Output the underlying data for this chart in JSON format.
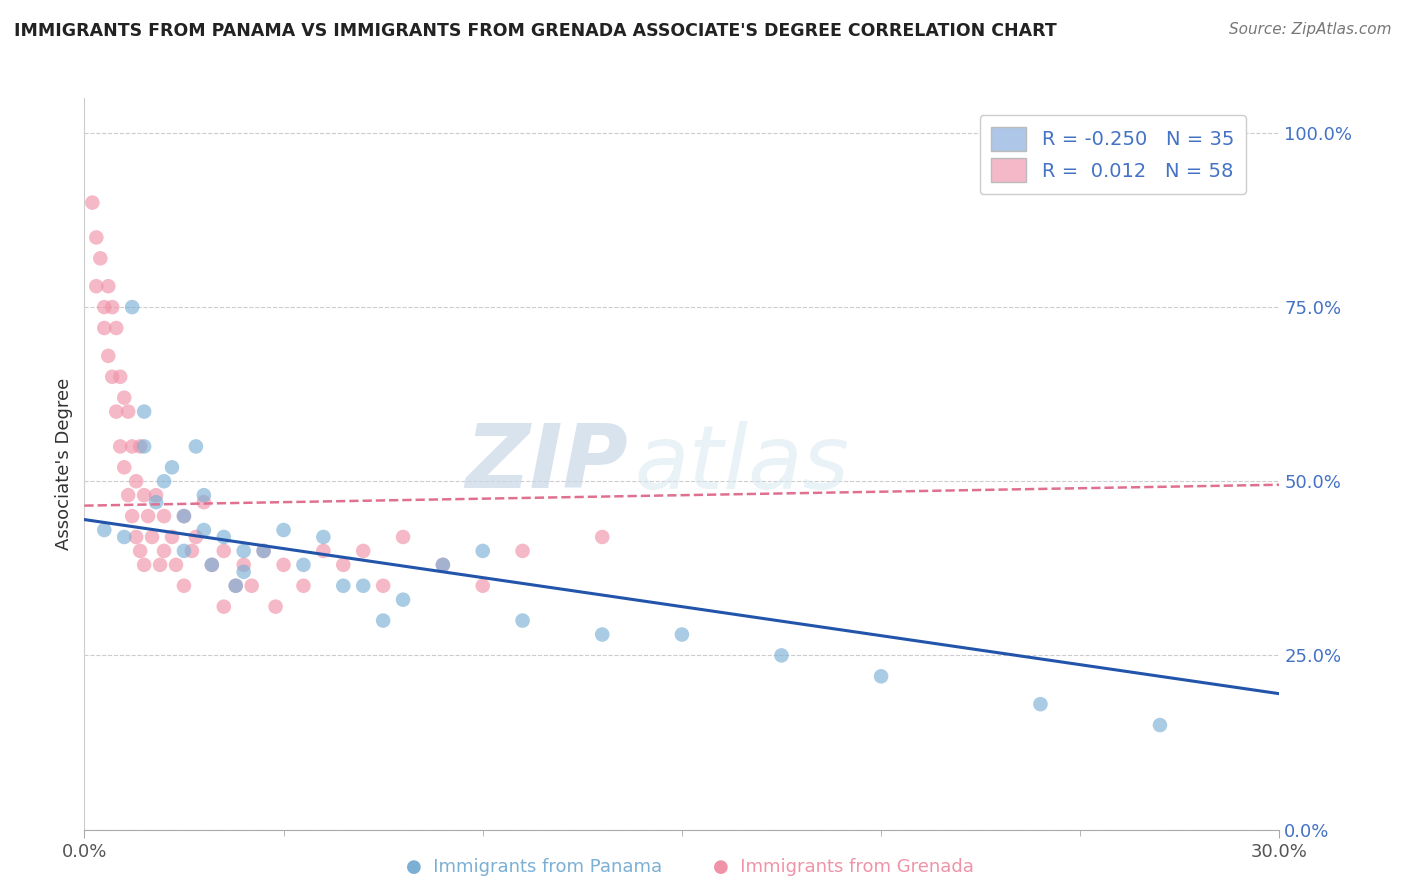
{
  "title": "IMMIGRANTS FROM PANAMA VS IMMIGRANTS FROM GRENADA ASSOCIATE'S DEGREE CORRELATION CHART",
  "source": "Source: ZipAtlas.com",
  "ylabel": "Associate's Degree",
  "yticks": [
    "0.0%",
    "25.0%",
    "50.0%",
    "75.0%",
    "100.0%"
  ],
  "ytick_vals": [
    0.0,
    0.25,
    0.5,
    0.75,
    1.0
  ],
  "xlim": [
    0.0,
    0.3
  ],
  "ylim": [
    0.0,
    1.05
  ],
  "watermark_zip": "ZIP",
  "watermark_atlas": "atlas",
  "panama_color": "#7bafd4",
  "panama_edge_color": "#5a9abf",
  "grenada_color": "#f093a8",
  "grenada_edge_color": "#e07090",
  "trend_panama_color": "#2255aa",
  "trend_grenada_color": "#e07090",
  "panama_scatter_x": [
    0.005,
    0.01,
    0.012,
    0.015,
    0.015,
    0.018,
    0.02,
    0.022,
    0.025,
    0.025,
    0.028,
    0.03,
    0.03,
    0.032,
    0.035,
    0.038,
    0.04,
    0.04,
    0.045,
    0.05,
    0.055,
    0.06,
    0.065,
    0.07,
    0.075,
    0.08,
    0.09,
    0.1,
    0.11,
    0.13,
    0.15,
    0.175,
    0.2,
    0.24,
    0.27
  ],
  "panama_scatter_y": [
    0.43,
    0.42,
    0.75,
    0.6,
    0.55,
    0.47,
    0.5,
    0.52,
    0.45,
    0.4,
    0.55,
    0.48,
    0.43,
    0.38,
    0.42,
    0.35,
    0.4,
    0.37,
    0.4,
    0.43,
    0.38,
    0.42,
    0.35,
    0.35,
    0.3,
    0.33,
    0.38,
    0.4,
    0.3,
    0.28,
    0.28,
    0.25,
    0.22,
    0.18,
    0.15
  ],
  "grenada_scatter_x": [
    0.002,
    0.003,
    0.003,
    0.004,
    0.005,
    0.005,
    0.006,
    0.006,
    0.007,
    0.007,
    0.008,
    0.008,
    0.009,
    0.009,
    0.01,
    0.01,
    0.011,
    0.011,
    0.012,
    0.012,
    0.013,
    0.013,
    0.014,
    0.014,
    0.015,
    0.015,
    0.016,
    0.017,
    0.018,
    0.019,
    0.02,
    0.02,
    0.022,
    0.023,
    0.025,
    0.025,
    0.027,
    0.028,
    0.03,
    0.032,
    0.035,
    0.035,
    0.038,
    0.04,
    0.042,
    0.045,
    0.048,
    0.05,
    0.055,
    0.06,
    0.065,
    0.07,
    0.075,
    0.08,
    0.09,
    0.1,
    0.11,
    0.13
  ],
  "grenada_scatter_y": [
    0.9,
    0.85,
    0.78,
    0.82,
    0.75,
    0.72,
    0.78,
    0.68,
    0.75,
    0.65,
    0.72,
    0.6,
    0.65,
    0.55,
    0.62,
    0.52,
    0.6,
    0.48,
    0.55,
    0.45,
    0.5,
    0.42,
    0.55,
    0.4,
    0.48,
    0.38,
    0.45,
    0.42,
    0.48,
    0.38,
    0.45,
    0.4,
    0.42,
    0.38,
    0.45,
    0.35,
    0.4,
    0.42,
    0.47,
    0.38,
    0.4,
    0.32,
    0.35,
    0.38,
    0.35,
    0.4,
    0.32,
    0.38,
    0.35,
    0.4,
    0.38,
    0.4,
    0.35,
    0.42,
    0.38,
    0.35,
    0.4,
    0.42
  ],
  "panama_trend_x0": 0.0,
  "panama_trend_y0": 0.445,
  "panama_trend_x1": 0.3,
  "panama_trend_y1": 0.195,
  "grenada_trend_x0": 0.0,
  "grenada_trend_y0": 0.465,
  "grenada_trend_x1": 0.3,
  "grenada_trend_y1": 0.495
}
